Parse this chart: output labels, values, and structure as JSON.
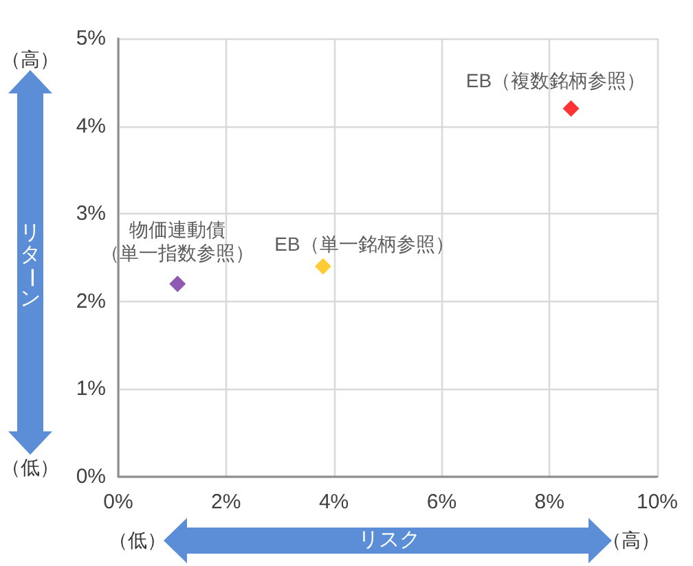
{
  "chart_data": {
    "type": "scatter",
    "xlabel": "リスク",
    "ylabel": "リターン",
    "annotations": [
      "（高）",
      "（低）",
      "（低）",
      "（高）"
    ],
    "series": [
      {
        "name": "物価連動債（単一指数参照）",
        "color": "#7030a0",
        "x": [
          1.1
        ],
        "values": [
          2.2
        ]
      },
      {
        "name": "EB（単一銘柄参照）",
        "color": "#ffc000",
        "x": [
          3.8
        ],
        "values": [
          2.4
        ]
      },
      {
        "name": "EB（複数銘柄参照）",
        "color": "#ff0000",
        "x": [
          8.4
        ],
        "values": [
          4.2
        ]
      }
    ],
    "xlim": [
      0,
      10
    ],
    "xticks": [
      {
        "value": 0,
        "label": "0%"
      },
      {
        "value": 2,
        "label": "2%"
      },
      {
        "value": 4,
        "label": "4%"
      },
      {
        "value": 6,
        "label": "6%"
      },
      {
        "value": 8,
        "label": "8%"
      },
      {
        "value": 10,
        "label": "10%"
      }
    ],
    "ylim": [
      0,
      5
    ],
    "yticks": [
      {
        "value": 0,
        "label": "0%"
      },
      {
        "value": 1,
        "label": "1%"
      },
      {
        "value": 2,
        "label": "2%"
      },
      {
        "value": 3,
        "label": "3%"
      },
      {
        "value": 4,
        "label": "4%"
      },
      {
        "value": 5,
        "label": "5%"
      }
    ],
    "grid": true,
    "marker": "diamond"
  }
}
